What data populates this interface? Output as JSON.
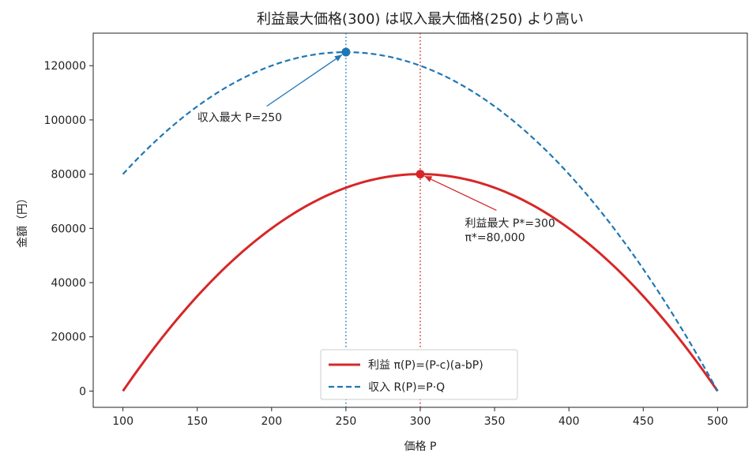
{
  "chart_data": {
    "type": "line",
    "title": "利益最大価格(300) は収入最大価格(250) より高い",
    "xlabel": "価格 P",
    "ylabel": "金額（円）",
    "xlim": [
      80,
      520
    ],
    "ylim": [
      -6000,
      132000
    ],
    "xticks": [
      100,
      150,
      200,
      250,
      300,
      350,
      400,
      450,
      500
    ],
    "yticks": [
      0,
      20000,
      40000,
      60000,
      80000,
      100000,
      120000
    ],
    "grid": false,
    "legend_position": "lower center",
    "series": [
      {
        "name": "利益 π(P)=(P-c)(a-bP)",
        "style": "solid",
        "color": "#d62728",
        "x": [
          100,
          150,
          200,
          250,
          300,
          350,
          400,
          450,
          500
        ],
        "y": [
          0,
          35000,
          60000,
          75000,
          80000,
          75000,
          60000,
          35000,
          0
        ]
      },
      {
        "name": "収入 R(P)=P·Q",
        "style": "dashed",
        "color": "#1f77b4",
        "x": [
          100,
          150,
          200,
          250,
          300,
          350,
          400,
          450,
          500
        ],
        "y": [
          80000,
          105000,
          120000,
          125000,
          120000,
          105000,
          80000,
          45000,
          0
        ]
      }
    ],
    "vlines": [
      {
        "x": 250,
        "color": "#1f77b4",
        "style": "dotted"
      },
      {
        "x": 300,
        "color": "#d62728",
        "style": "dotted"
      }
    ],
    "points": [
      {
        "x": 250,
        "y": 125000,
        "color": "#1f77b4"
      },
      {
        "x": 300,
        "y": 80000,
        "color": "#d62728"
      }
    ],
    "annotations": [
      {
        "lines": [
          "収入最大 P=250"
        ],
        "text_x": 150,
        "text_y": 101000,
        "target_x": 250,
        "target_y": 125000,
        "color": "#1f77b4"
      },
      {
        "lines": [
          "利益最大 P*=300",
          " π*=80,000"
        ],
        "text_x": 330,
        "text_y": 62000,
        "target_x": 300,
        "target_y": 80000,
        "color": "#d62728"
      }
    ]
  }
}
